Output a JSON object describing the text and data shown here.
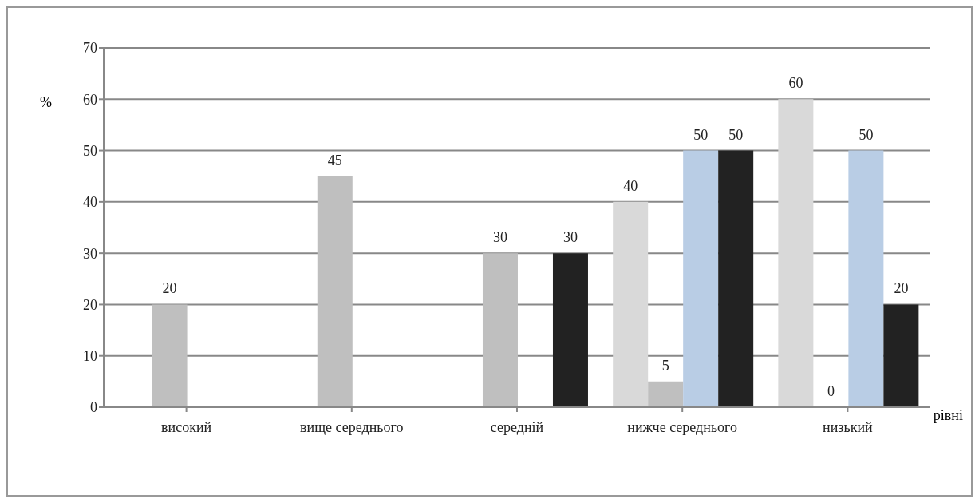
{
  "chart_data": {
    "type": "bar",
    "categories": [
      "високий",
      "вище середнього",
      "середній",
      "нижче середнього",
      "низький"
    ],
    "series": [
      {
        "color": "#d9d9d9",
        "values": [
          null,
          null,
          null,
          40,
          60
        ]
      },
      {
        "color": "#bfbfbf",
        "values": [
          20,
          45,
          30,
          5,
          0
        ]
      },
      {
        "color": "#b9cde5",
        "values": [
          null,
          null,
          null,
          50,
          50
        ]
      },
      {
        "color": "#222222",
        "values": [
          null,
          null,
          30,
          50,
          20
        ]
      }
    ],
    "ylabel": "%",
    "xlabel": "рівні",
    "ylim": [
      0,
      70
    ],
    "yticks": [
      0,
      10,
      20,
      30,
      40,
      50,
      60,
      70
    ],
    "grid": "y",
    "data_labels": true,
    "legend": false
  }
}
